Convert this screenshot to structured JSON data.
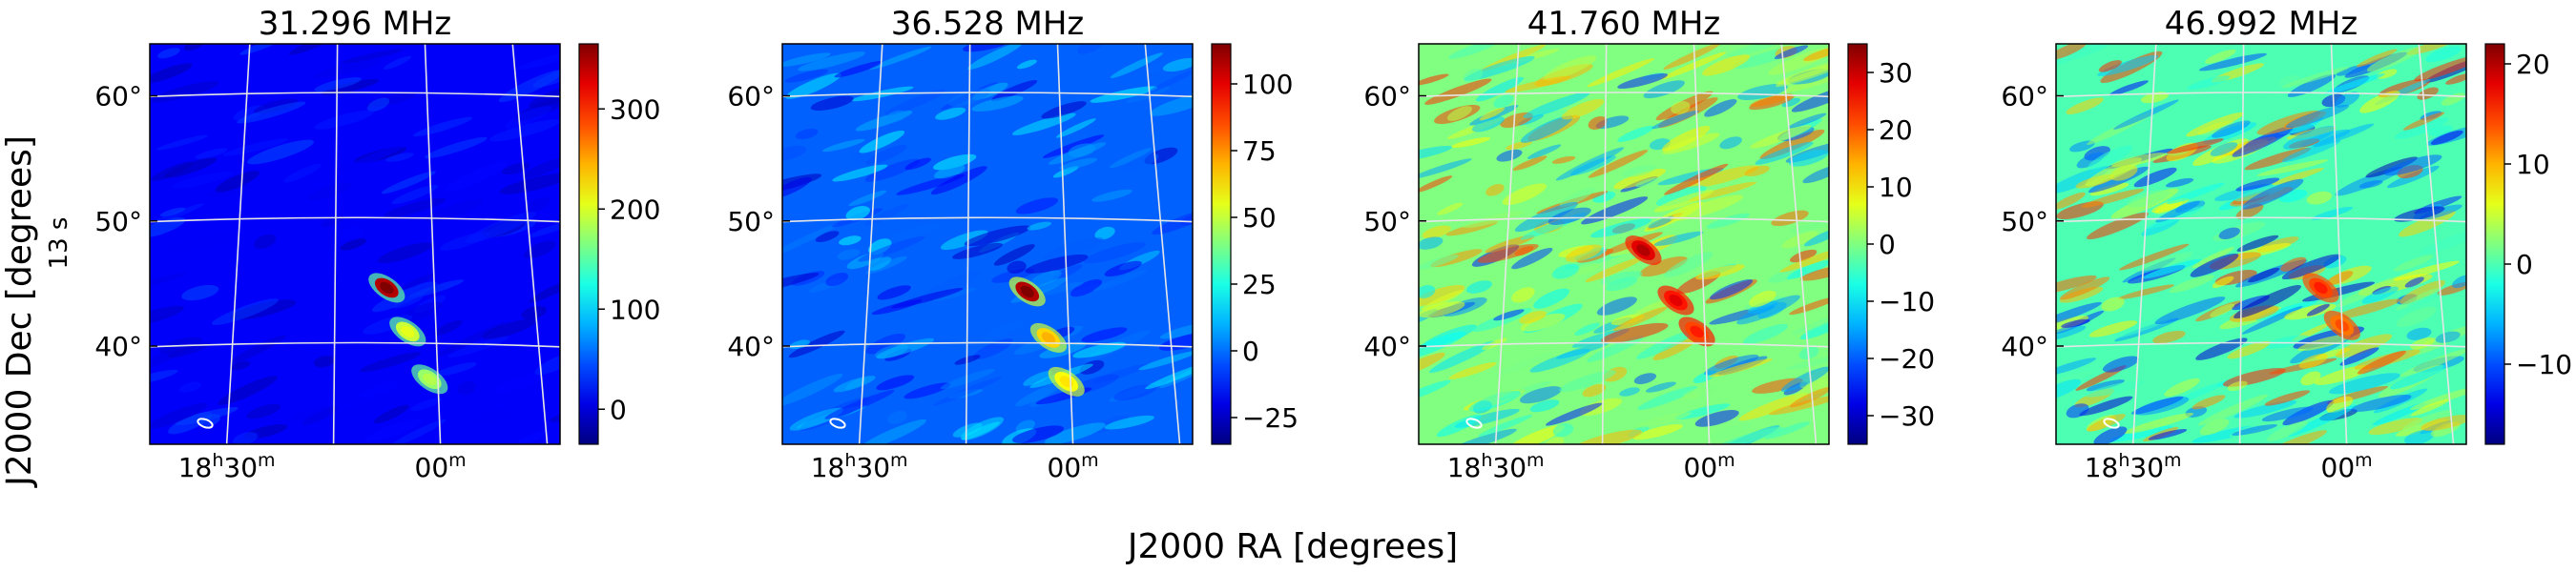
{
  "figure": {
    "xlabel": "J2000 RA [degrees]",
    "ylabel": "J2000 Dec [degrees]",
    "side_label": "13 s"
  },
  "chart_data": [
    {
      "type": "heatmap",
      "title": "31.296 MHz",
      "colormap": "jet",
      "ra_ticks": [
        {
          "label_h": "18",
          "label_m": "30",
          "ra_hours": 18.5
        },
        {
          "label_h": "",
          "label_m": "00",
          "ra_hours": 18.0
        }
      ],
      "dec_ticks": [
        {
          "label": "60°",
          "value": 60
        },
        {
          "label": "50°",
          "value": 50
        },
        {
          "label": "40°",
          "value": 40
        }
      ],
      "colorbar": {
        "ticks": [
          300,
          200,
          100,
          0
        ],
        "range": [
          -35,
          365
        ]
      },
      "background_level": 0.12,
      "noise_amp": 0.05,
      "source_blobs": [
        {
          "ra_hours": 18.12,
          "dec": 44.5,
          "peak": 1.0
        },
        {
          "ra_hours": 18.07,
          "dec": 41.0,
          "peak": 0.6
        },
        {
          "ra_hours": 18.02,
          "dec": 37.2,
          "peak": 0.55
        }
      ]
    },
    {
      "type": "heatmap",
      "title": "36.528 MHz",
      "colormap": "jet",
      "ra_ticks": [
        {
          "label_h": "18",
          "label_m": "30",
          "ra_hours": 18.5
        },
        {
          "label_h": "",
          "label_m": "00",
          "ra_hours": 18.0
        }
      ],
      "dec_ticks": [
        {
          "label": "60°",
          "value": 60
        },
        {
          "label": "50°",
          "value": 50
        },
        {
          "label": "40°",
          "value": 40
        }
      ],
      "colorbar": {
        "ticks": [
          100,
          75,
          50,
          25,
          0,
          -25
        ],
        "range": [
          -35,
          115
        ]
      },
      "background_level": 0.22,
      "noise_amp": 0.1,
      "source_blobs": [
        {
          "ra_hours": 18.1,
          "dec": 44.2,
          "peak": 1.0
        },
        {
          "ra_hours": 18.05,
          "dec": 40.5,
          "peak": 0.7
        },
        {
          "ra_hours": 18.01,
          "dec": 37.0,
          "peak": 0.65
        }
      ]
    },
    {
      "type": "heatmap",
      "title": "41.760 MHz",
      "colormap": "jet",
      "ra_ticks": [
        {
          "label_h": "18",
          "label_m": "30",
          "ra_hours": 18.5
        },
        {
          "label_h": "",
          "label_m": "00",
          "ra_hours": 18.0
        }
      ],
      "dec_ticks": [
        {
          "label": "60°",
          "value": 60
        },
        {
          "label": "50°",
          "value": 50
        },
        {
          "label": "40°",
          "value": 40
        }
      ],
      "colorbar": {
        "ticks": [
          30,
          20,
          10,
          0,
          -10,
          -20,
          -30
        ],
        "range": [
          -35,
          35
        ]
      },
      "background_level": 0.5,
      "noise_amp": 0.22,
      "source_blobs": [
        {
          "ra_hours": 18.15,
          "dec": 47.5,
          "peak": 0.95
        },
        {
          "ra_hours": 18.07,
          "dec": 43.5,
          "peak": 0.9
        },
        {
          "ra_hours": 18.02,
          "dec": 41.0,
          "peak": 0.85
        }
      ]
    },
    {
      "type": "heatmap",
      "title": "46.992 MHz",
      "colormap": "jet",
      "ra_ticks": [
        {
          "label_h": "18",
          "label_m": "30",
          "ra_hours": 18.5
        },
        {
          "label_h": "",
          "label_m": "00",
          "ra_hours": 18.0
        }
      ],
      "dec_ticks": [
        {
          "label": "60°",
          "value": 60
        },
        {
          "label": "50°",
          "value": 50
        },
        {
          "label": "40°",
          "value": 40
        }
      ],
      "colorbar": {
        "ticks": [
          20,
          10,
          0,
          -10
        ],
        "range": [
          -18,
          22
        ]
      },
      "background_level": 0.45,
      "noise_amp": 0.25,
      "source_blobs": [
        {
          "ra_hours": 18.05,
          "dec": 44.5,
          "peak": 0.85
        },
        {
          "ra_hours": 18.0,
          "dec": 41.5,
          "peak": 0.8
        }
      ]
    }
  ]
}
